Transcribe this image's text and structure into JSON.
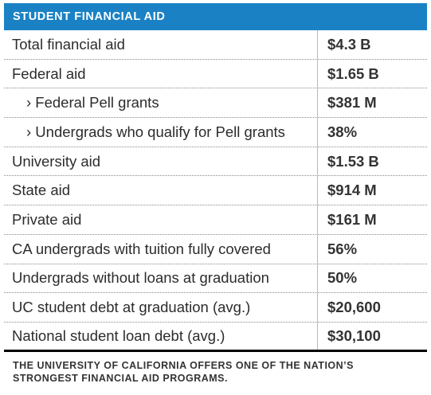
{
  "header": {
    "title": "STUDENT FINANCIAL AID"
  },
  "rows": [
    {
      "label": "Total financial aid",
      "value": "$4.3 B"
    },
    {
      "label": "Federal aid",
      "value": "$1.65 B"
    },
    {
      "label": "› Federal Pell grants",
      "value": "$381 M"
    },
    {
      "label": "› Undergrads who qualify for Pell grants",
      "value": "38%"
    },
    {
      "label": "University aid",
      "value": "$1.53 B"
    },
    {
      "label": "State aid",
      "value": "$914 M"
    },
    {
      "label": "Private aid",
      "value": "$161 M"
    },
    {
      "label": "CA undergrads with tuition fully covered",
      "value": "56%"
    },
    {
      "label": "Undergrads without loans at graduation",
      "value": "50%"
    },
    {
      "label": "UC student debt at graduation (avg.)",
      "value": "$20,600"
    },
    {
      "label": "National student loan debt (avg.)",
      "value": "$30,100"
    }
  ],
  "footnote": {
    "line1": "THE UNIVERSITY OF CALIFORNIA OFFERS ONE OF THE NATION’S",
    "line2": "STRONGEST FINANCIAL AID PROGRAMS."
  }
}
